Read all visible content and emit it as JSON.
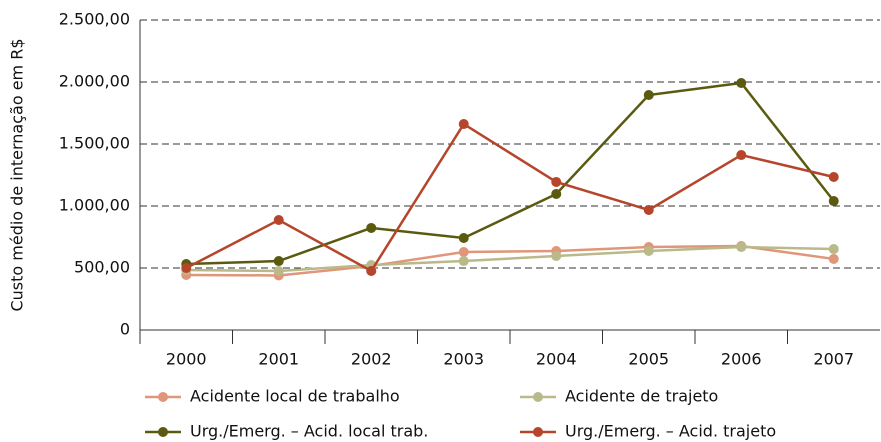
{
  "chart_data": {
    "type": "line",
    "y_label": "Custo médio de internação em R$",
    "categories": [
      "2000",
      "2001",
      "2002",
      "2003",
      "2004",
      "2005",
      "2006",
      "2007"
    ],
    "series": [
      {
        "name": "Acidente local de trabalho",
        "color": "#e0967a",
        "values": [
          444,
          440,
          516,
          629,
          637,
          669,
          677,
          573
        ]
      },
      {
        "name": "Acidente de trajeto",
        "color": "#b9b98a",
        "values": [
          484,
          476,
          524,
          556,
          597,
          637,
          669,
          653
        ]
      },
      {
        "name": "Urg./Emerg. – Acid. local trab.",
        "color": "#5a5a10",
        "values": [
          532,
          556,
          823,
          742,
          1097,
          1895,
          1992,
          1040
        ]
      },
      {
        "name": "Urg./Emerg. – Acid. trajeto",
        "color": "#b5452b",
        "values": [
          500,
          887,
          476,
          1661,
          1194,
          968,
          1411,
          1234
        ]
      }
    ],
    "ylim": [
      0,
      2500
    ],
    "yticks": [
      0,
      {
        "value": 500,
        "label": "500,00"
      },
      {
        "value": 1000,
        "label": "1.000,00"
      },
      {
        "value": 1500,
        "label": "1.500,00"
      },
      {
        "value": 2000,
        "label": "2.000,00"
      },
      {
        "value": 2500,
        "label": "2.500,00"
      }
    ],
    "grid": true,
    "legend": "bottom"
  }
}
